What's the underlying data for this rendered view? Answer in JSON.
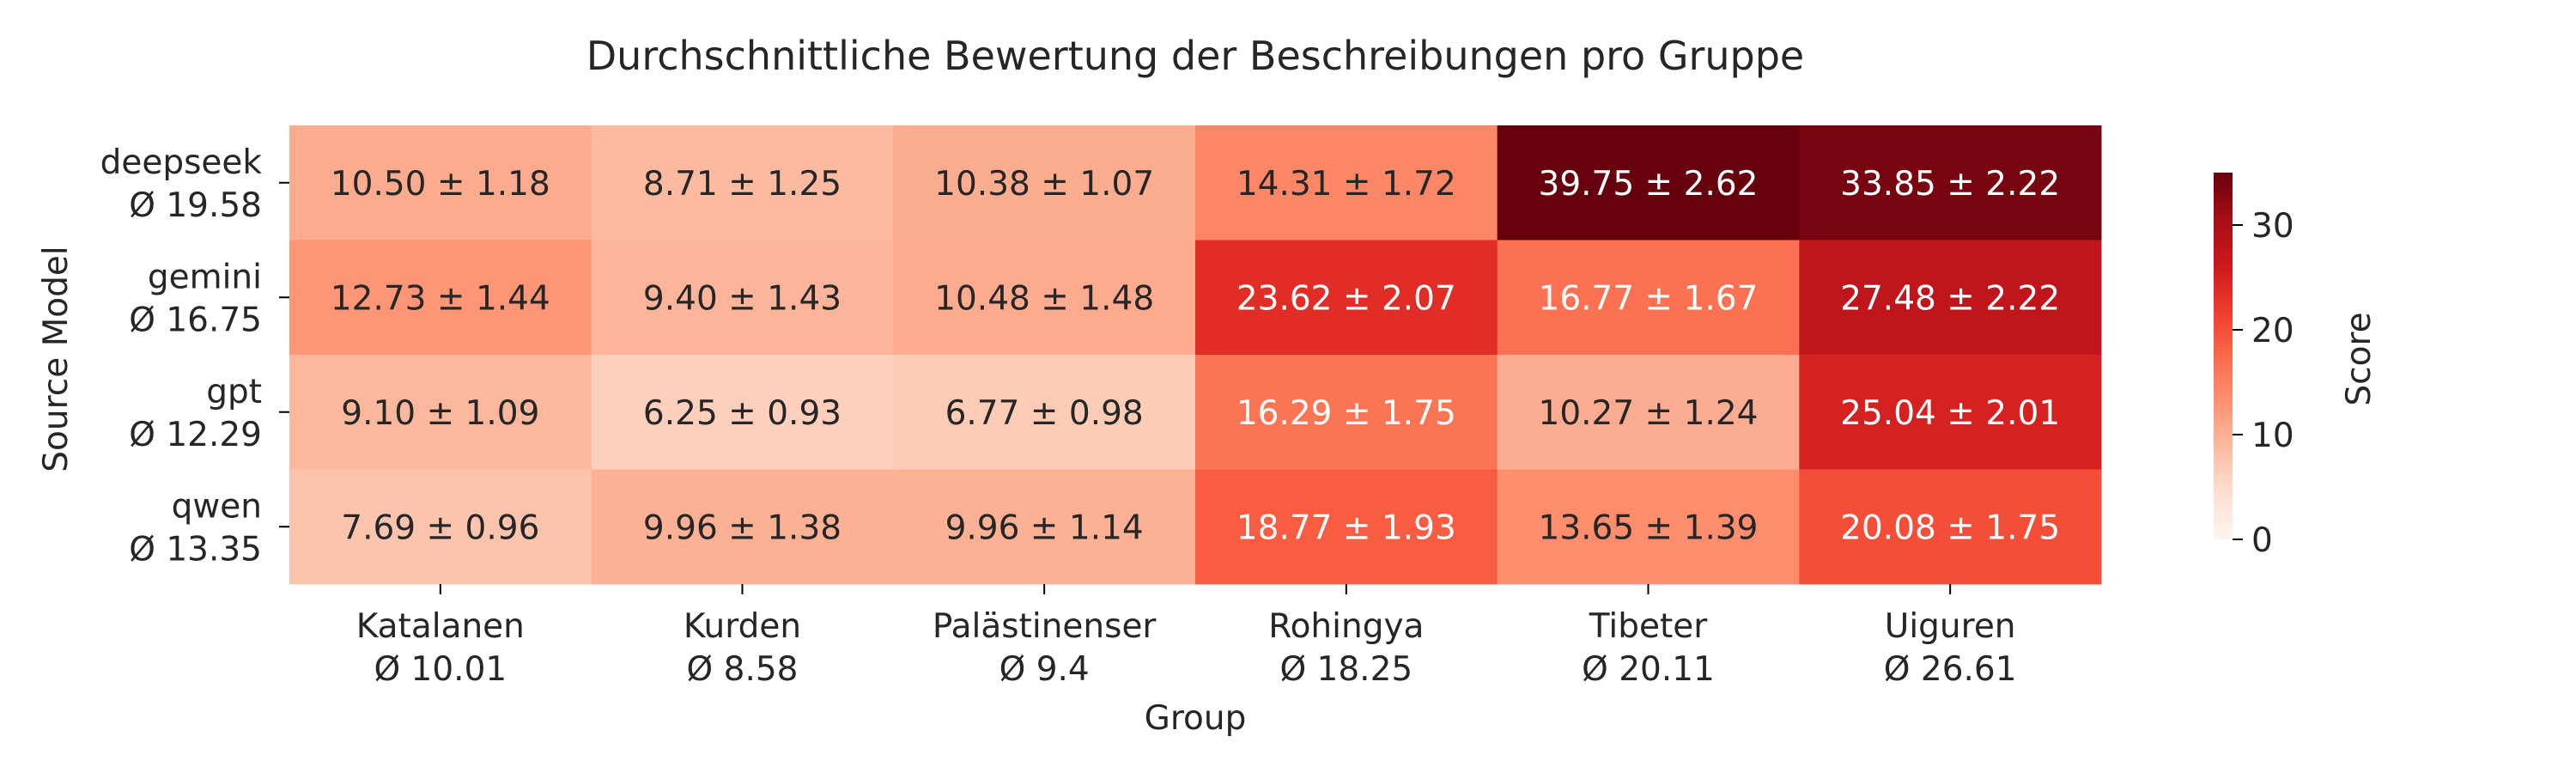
{
  "chart_data": {
    "type": "heatmap",
    "title": "Durchschnittliche Bewertung der Beschreibungen pro Gruppe",
    "xlabel": "Group",
    "ylabel": "Source Model",
    "x": [
      {
        "name": "Katalanen",
        "avg": "Ø 10.01"
      },
      {
        "name": "Kurden",
        "avg": "Ø 8.58"
      },
      {
        "name": "Palästinenser",
        "avg": "Ø 9.4"
      },
      {
        "name": "Rohingya",
        "avg": "Ø 18.25"
      },
      {
        "name": "Tibeter",
        "avg": "Ø 20.11"
      },
      {
        "name": "Uiguren",
        "avg": "Ø 26.61"
      }
    ],
    "y": [
      {
        "name": "deepseek",
        "avg": "Ø 19.58"
      },
      {
        "name": "gemini",
        "avg": "Ø 16.75"
      },
      {
        "name": "gpt",
        "avg": "Ø 12.29"
      },
      {
        "name": "qwen",
        "avg": "Ø 13.35"
      }
    ],
    "values": [
      [
        10.5,
        8.71,
        10.38,
        14.31,
        39.75,
        33.85
      ],
      [
        12.73,
        9.4,
        10.48,
        23.62,
        16.77,
        27.48
      ],
      [
        9.1,
        6.25,
        6.77,
        16.29,
        10.27,
        25.04
      ],
      [
        7.69,
        9.96,
        9.96,
        18.77,
        13.65,
        20.08
      ]
    ],
    "errors": [
      [
        1.18,
        1.25,
        1.07,
        1.72,
        2.62,
        2.22
      ],
      [
        1.44,
        1.43,
        1.48,
        2.07,
        1.67,
        2.22
      ],
      [
        1.09,
        0.93,
        0.98,
        1.75,
        1.24,
        2.01
      ],
      [
        0.96,
        1.38,
        1.14,
        1.93,
        1.39,
        1.75
      ]
    ],
    "colorbar": {
      "label": "Score",
      "range": [
        0,
        35
      ],
      "ticks": [
        0,
        10,
        20,
        30
      ],
      "colormap": "Reds"
    }
  }
}
